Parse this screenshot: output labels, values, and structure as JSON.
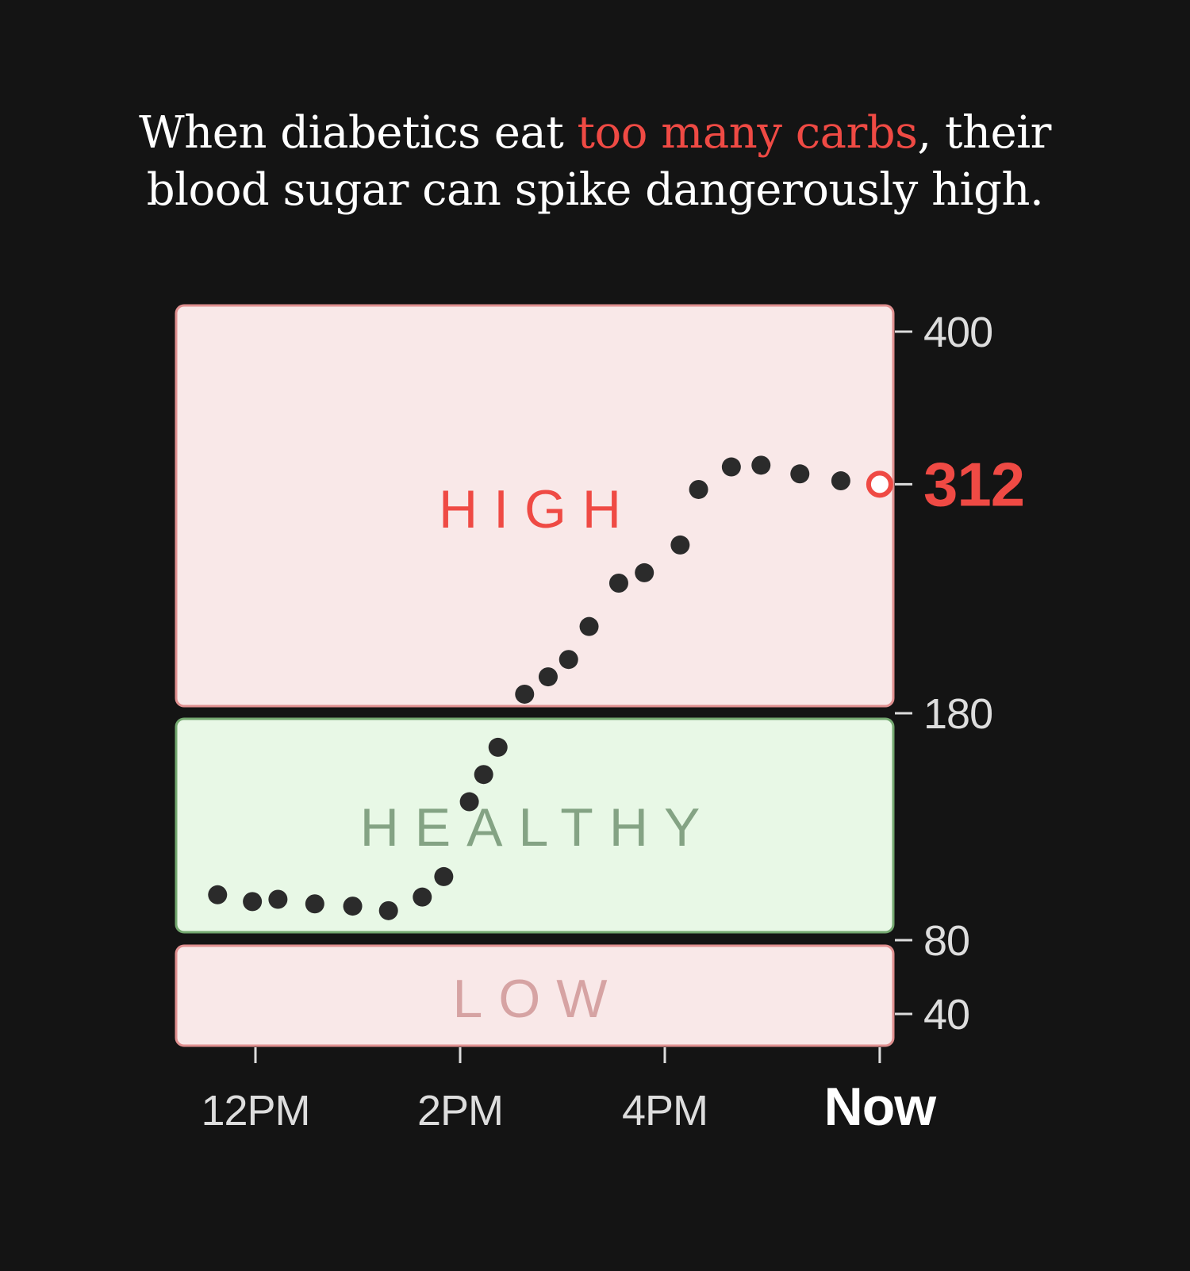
{
  "title": {
    "line1_before": "When diabetics eat ",
    "line1_highlight": "too many carbs",
    "line1_after": ", their",
    "line2": "blood sugar can spike dangerously high."
  },
  "colors": {
    "background": "#141414",
    "high_fill": "#f9e8e8",
    "high_border": "#e09090",
    "healthy_fill": "#e8f8e6",
    "healthy_border": "#74a870",
    "high_label": "#ef4a44",
    "healthy_label": "#84a384",
    "low_label": "#d6a3a3",
    "highlight": "#ef4a44",
    "dots": "#2b2b2b"
  },
  "chart_data": {
    "type": "scatter",
    "title": "",
    "xlabel": "",
    "ylabel": "",
    "zones": [
      {
        "name": "HIGH",
        "from": 180,
        "to": 400
      },
      {
        "name": "HEALTHY",
        "from": 80,
        "to": 180
      },
      {
        "name": "LOW",
        "from": 40,
        "to": 80
      }
    ],
    "y_ticks": [
      {
        "value": 400,
        "label": "400"
      },
      {
        "value": 312,
        "label": "312"
      },
      {
        "value": 180,
        "label": "180"
      },
      {
        "value": 80,
        "label": "80"
      },
      {
        "value": 40,
        "label": "40"
      }
    ],
    "x_ticks": [
      {
        "value": 12,
        "label": "12PM"
      },
      {
        "value": 14,
        "label": "2PM"
      },
      {
        "value": 16,
        "label": "4PM"
      },
      {
        "value": 18.1,
        "label": "Now"
      }
    ],
    "current_value": 312,
    "points": [
      {
        "x": 11.63,
        "y": 100
      },
      {
        "x": 11.97,
        "y": 97
      },
      {
        "x": 12.22,
        "y": 98
      },
      {
        "x": 12.58,
        "y": 96
      },
      {
        "x": 12.95,
        "y": 95
      },
      {
        "x": 13.3,
        "y": 93
      },
      {
        "x": 13.63,
        "y": 99
      },
      {
        "x": 13.84,
        "y": 108
      },
      {
        "x": 14.09,
        "y": 141
      },
      {
        "x": 14.23,
        "y": 153
      },
      {
        "x": 14.37,
        "y": 165
      },
      {
        "x": 14.63,
        "y": 191
      },
      {
        "x": 14.86,
        "y": 201
      },
      {
        "x": 15.06,
        "y": 211
      },
      {
        "x": 15.26,
        "y": 230
      },
      {
        "x": 15.55,
        "y": 255
      },
      {
        "x": 15.8,
        "y": 261
      },
      {
        "x": 16.15,
        "y": 277
      },
      {
        "x": 16.33,
        "y": 309
      },
      {
        "x": 16.65,
        "y": 322
      },
      {
        "x": 16.94,
        "y": 323
      },
      {
        "x": 17.32,
        "y": 318
      },
      {
        "x": 17.72,
        "y": 314
      },
      {
        "x": 18.1,
        "y": 312
      }
    ]
  }
}
